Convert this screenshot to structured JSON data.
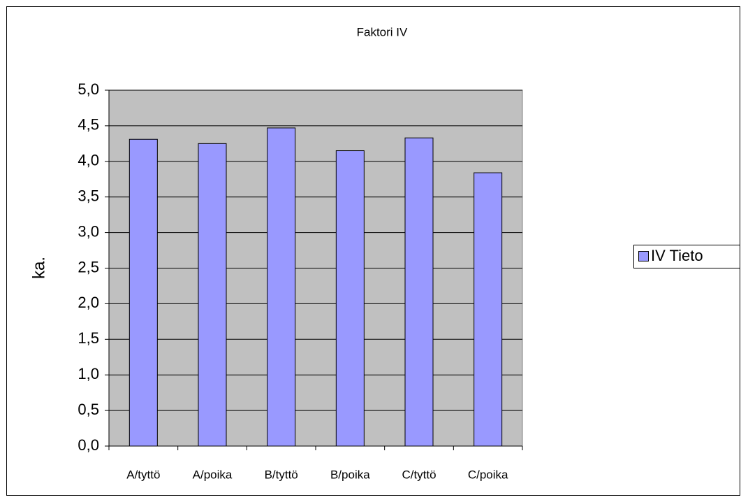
{
  "chart_data": {
    "type": "bar",
    "title": "Faktori IV",
    "y_label": "ka.",
    "categories": [
      "A/tyttö",
      "A/poika",
      "B/tyttö",
      "B/poika",
      "C/tyttö",
      "C/poika"
    ],
    "series": [
      {
        "name": "IV Tieto",
        "color": "#9999ff",
        "values": [
          4.31,
          4.25,
          4.47,
          4.15,
          4.33,
          3.84
        ]
      }
    ],
    "ylim": [
      0,
      5
    ],
    "yticks": [
      {
        "value": 0,
        "label": "0,0"
      },
      {
        "value": 0.5,
        "label": "0,5"
      },
      {
        "value": 1,
        "label": "1,0"
      },
      {
        "value": 1.5,
        "label": "1,5"
      },
      {
        "value": 2,
        "label": "2,0"
      },
      {
        "value": 2.5,
        "label": "2,5"
      },
      {
        "value": 3,
        "label": "3,0"
      },
      {
        "value": 3.5,
        "label": "3,5"
      },
      {
        "value": 4,
        "label": "4,0"
      },
      {
        "value": 4.5,
        "label": "4,5"
      },
      {
        "value": 5,
        "label": "5,0"
      }
    ],
    "grid": true,
    "plot_background": "#c0c0c0",
    "legend": "right"
  }
}
